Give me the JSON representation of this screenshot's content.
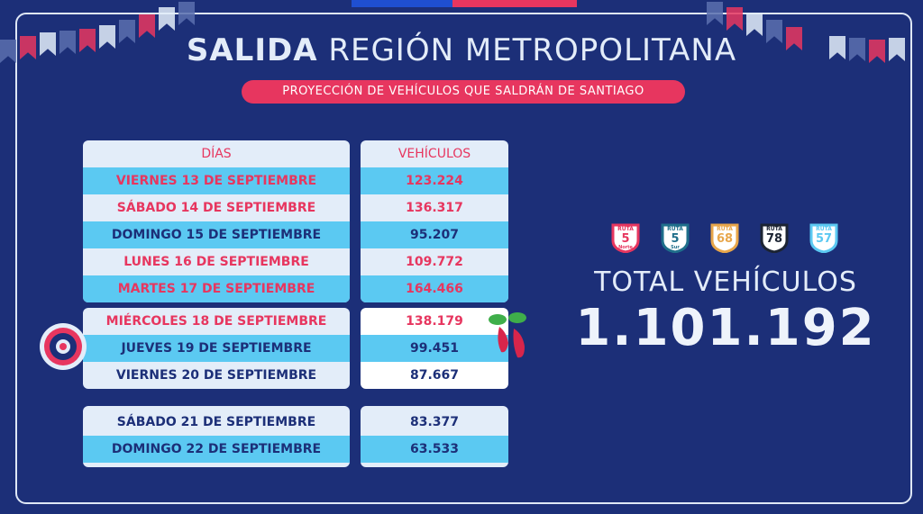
{
  "header": {
    "title_bold": "SALIDA",
    "title_rest": "REGIÓN METROPOLITANA",
    "subtitle": "PROYECCIÓN DE VEHÍCULOS QUE SALDRÁN DE SANTIAGO"
  },
  "table": {
    "days_header": "DÍAS",
    "vehicles_header": "VEHÍCULOS",
    "groups": [
      [
        {
          "day": "VIERNES 13 DE SEPTIEMBRE",
          "vehicles": "123.224"
        },
        {
          "day": "SÁBADO 14 DE SEPTIEMBRE",
          "vehicles": "136.317"
        },
        {
          "day": "DOMINGO 15 DE SEPTIEMBRE",
          "vehicles": "95.207"
        },
        {
          "day": "LUNES 16 DE SEPTIEMBRE",
          "vehicles": "109.772"
        },
        {
          "day": "MARTES 17 DE SEPTIEMBRE",
          "vehicles": "164.466"
        }
      ],
      [
        {
          "day": "MIÉRCOLES 18 DE SEPTIEMBRE",
          "vehicles": "138.179"
        },
        {
          "day": "JUEVES 19 DE SEPTIEMBRE",
          "vehicles": "99.451"
        },
        {
          "day": "VIERNES 20 DE SEPTIEMBRE",
          "vehicles": "87.667"
        }
      ],
      [
        {
          "day": "SÁBADO 21 DE SEPTIEMBRE",
          "vehicles": "83.377"
        },
        {
          "day": "DOMINGO 22 DE SEPTIEMBRE",
          "vehicles": "63.533"
        }
      ]
    ]
  },
  "routes": [
    {
      "label": "RUTA",
      "number": "5",
      "sub": "Norte",
      "color": "#e7365f"
    },
    {
      "label": "RUTA",
      "number": "5",
      "sub": "Sur",
      "color": "#1f6f8b"
    },
    {
      "label": "RUTA",
      "number": "68",
      "sub": "",
      "color": "#e8a64a"
    },
    {
      "label": "RUTA",
      "number": "78",
      "sub": "",
      "color": "#1c2433"
    },
    {
      "label": "RUTA",
      "number": "57",
      "sub": "",
      "color": "#5bc9f2"
    }
  ],
  "total": {
    "label": "TOTAL VEHÍCULOS",
    "value": "1.101.192"
  },
  "colors": {
    "background": "#1c2f78",
    "accent_red": "#e7365f",
    "accent_cyan": "#5bc9f2",
    "panel": "#e3edf9"
  }
}
